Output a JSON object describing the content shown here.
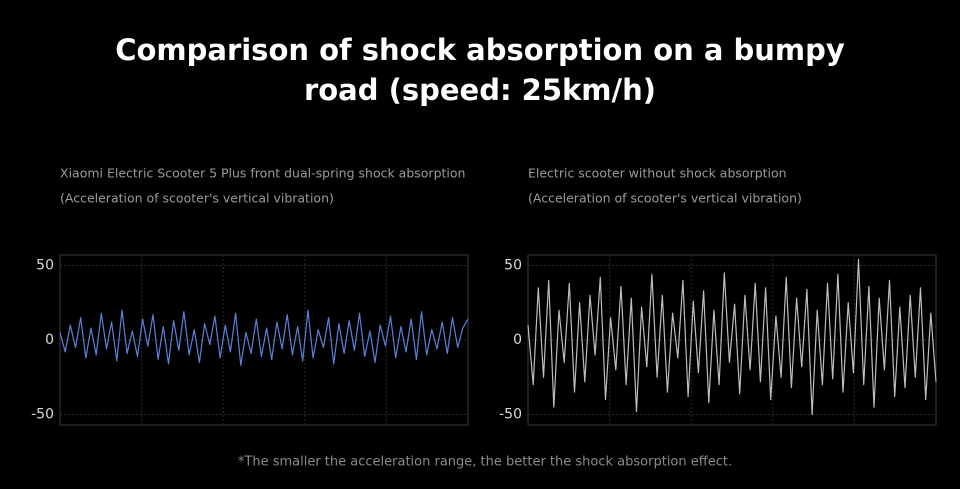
{
  "title": "Comparison of shock absorption on a bumpy road (speed: 25km/h)",
  "footnote": "*The smaller the acceleration range, the better the shock absorption effect.",
  "chart_data": [
    {
      "type": "line",
      "title": "Xiaomi Electric Scooter 5 Plus front dual-spring shock absorption",
      "subtitle": "(Acceleration of scooter's vertical vibration)",
      "color": "#5b80d8",
      "ylim": [
        -57,
        57
      ],
      "yticks": [
        -50,
        0,
        50
      ],
      "grid": true,
      "values": [
        5,
        -8,
        10,
        -5,
        15,
        -12,
        8,
        -10,
        18,
        -6,
        12,
        -14,
        20,
        -9,
        6,
        -11,
        14,
        -4,
        17,
        -13,
        9,
        -16,
        13,
        -7,
        19,
        -10,
        7,
        -15,
        11,
        -3,
        16,
        -12,
        10,
        -8,
        18,
        -17,
        5,
        -9,
        14,
        -11,
        8,
        -13,
        12,
        -6,
        17,
        -10,
        9,
        -14,
        20,
        -12,
        7,
        -5,
        15,
        -16,
        11,
        -9,
        13,
        -7,
        18,
        -11,
        6,
        -15,
        10,
        -4,
        16,
        -12,
        9,
        -8,
        14,
        -13,
        19,
        -10,
        7,
        -6,
        12,
        -9,
        15,
        -5,
        8,
        14
      ]
    },
    {
      "type": "line",
      "title": "Electric scooter without shock absorption",
      "subtitle": "(Acceleration of scooter's vertical vibration)",
      "color": "#bdbdbd",
      "ylim": [
        -57,
        57
      ],
      "yticks": [
        -50,
        0,
        50
      ],
      "grid": true,
      "values": [
        10,
        -30,
        35,
        -25,
        40,
        -45,
        20,
        -15,
        38,
        -35,
        25,
        -28,
        30,
        -10,
        42,
        -40,
        15,
        -20,
        36,
        -30,
        28,
        -48,
        22,
        -18,
        44,
        -25,
        30,
        -35,
        18,
        -12,
        40,
        -38,
        26,
        -22,
        33,
        -42,
        20,
        -30,
        45,
        -15,
        24,
        -36,
        30,
        -20,
        38,
        -28,
        35,
        -40,
        16,
        -25,
        42,
        -32,
        28,
        -18,
        34,
        -50,
        20,
        -30,
        38,
        -26,
        44,
        -35,
        25,
        -22,
        54,
        -30,
        36,
        -45,
        28,
        -20,
        40,
        -38,
        22,
        -32,
        30,
        -25,
        35,
        -40,
        18,
        -28
      ]
    }
  ]
}
